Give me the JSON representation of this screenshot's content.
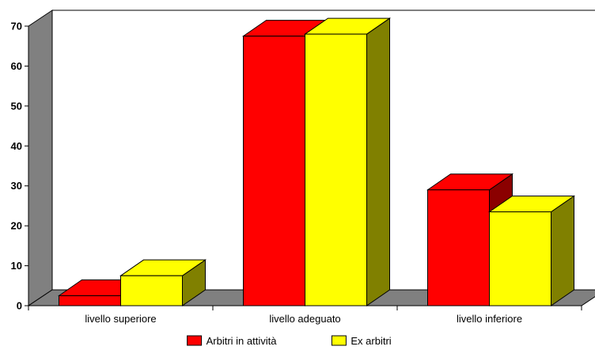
{
  "chart_data": {
    "type": "bar",
    "three_d": true,
    "categories": [
      "livello superiore",
      "livello adeguato",
      "livello inferiore"
    ],
    "series": [
      {
        "name": "Arbitri in attività",
        "color": "#ff0000",
        "top_color": "#ff0000",
        "side_color": "#8b0000",
        "values": [
          2.5,
          67.5,
          29
        ]
      },
      {
        "name": "Ex arbitri",
        "color": "#ffff00",
        "top_color": "#ffff00",
        "side_color": "#808000",
        "values": [
          7.5,
          68,
          23.5
        ]
      }
    ],
    "yticks": [
      0,
      10,
      20,
      30,
      40,
      50,
      60,
      70
    ],
    "ylim": [
      0,
      70
    ],
    "grid": false,
    "wall_color": "#808080",
    "legend_position": "bottom-center",
    "title": "",
    "xlabel": "",
    "ylabel": ""
  }
}
